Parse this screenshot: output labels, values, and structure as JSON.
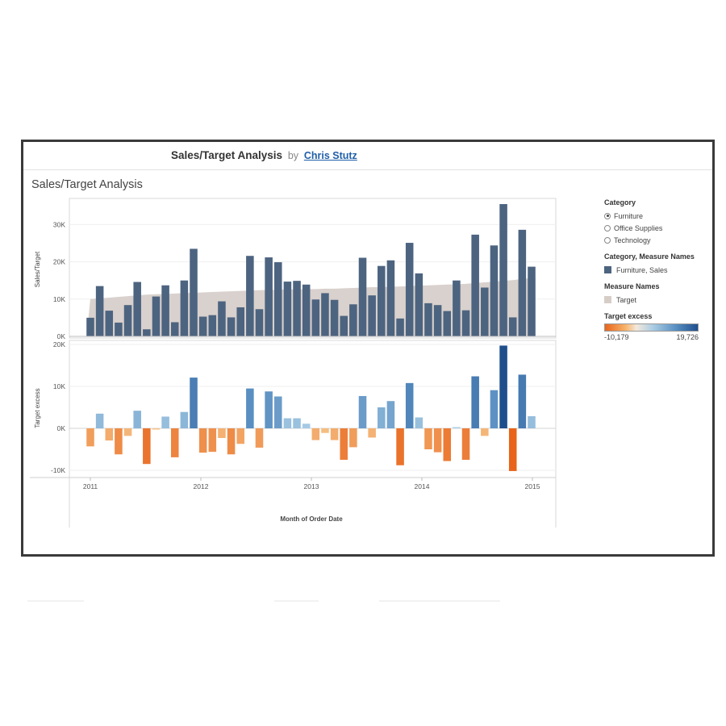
{
  "dashboard": {
    "title": "Sales/Target Analysis",
    "by": "by",
    "author": "Chris Stutz"
  },
  "sheet_title": "Sales/Target Analysis",
  "legend": {
    "category_title": "Category",
    "category_options": [
      {
        "label": "Furniture",
        "selected": true
      },
      {
        "label": "Office Supplies",
        "selected": false
      },
      {
        "label": "Technology",
        "selected": false
      }
    ],
    "measure_title": "Category, Measure Names",
    "measure_item": "Furniture, Sales",
    "measure_color": "#4d6480",
    "names_title": "Measure Names",
    "names_item": "Target",
    "names_color": "#d7cdc7",
    "excess_title": "Target excess",
    "excess_min": "-10,179",
    "excess_max": "19,726",
    "colors": {
      "sales": "#4d6480",
      "target_band": "#d9d1cd",
      "neg_strong": "#e8641b",
      "pos_strong": "#1f4e8c"
    }
  },
  "chart_data": [
    {
      "type": "bar",
      "title": "",
      "xlabel": "Month of Order Date",
      "ylabel": "Sales/Target",
      "x_ticks": [
        "2011",
        "2012",
        "2013",
        "2014",
        "2015"
      ],
      "y_ticks": [
        "0K",
        "10K",
        "20K",
        "30K"
      ],
      "ylim": [
        0,
        38000
      ],
      "series": [
        {
          "name": "Furniture, Sales",
          "values": [
            5000,
            13500,
            6900,
            3700,
            8400,
            14600,
            1900,
            10700,
            13700,
            3800,
            15000,
            23500,
            5300,
            5700,
            9400,
            5100,
            7800,
            21600,
            7300,
            21200,
            19900,
            14700,
            14900,
            13900,
            9900,
            11600,
            9800,
            5500,
            8600,
            21100,
            11000,
            18900,
            20400,
            4800,
            25100,
            16900,
            8900,
            8400,
            6800,
            15000,
            7000,
            27300,
            13100,
            24400,
            35500,
            5100,
            28600,
            18700
          ]
        },
        {
          "name": "Target",
          "values": [
            10000,
            10200,
            10400,
            10600,
            10800,
            11000,
            11200,
            11300,
            11400,
            11500,
            11600,
            11700,
            11800,
            11900,
            12000,
            12100,
            12200,
            12300,
            12400,
            12500,
            12500,
            12600,
            12600,
            12700,
            12700,
            12800,
            12800,
            12900,
            13000,
            13100,
            13200,
            13200,
            13300,
            13400,
            13500,
            13600,
            13700,
            13800,
            13900,
            14000,
            14100,
            14300,
            14500,
            14700,
            14900,
            15100,
            15400,
            15700
          ]
        }
      ]
    },
    {
      "type": "bar",
      "title": "",
      "ylabel": "Target excess",
      "y_ticks": [
        "20K",
        "10K",
        "0K",
        "-10K"
      ],
      "ylim": [
        -11000,
        20000
      ],
      "series": [
        {
          "name": "Target excess",
          "values": [
            -4300,
            3500,
            -2900,
            -6200,
            -1800,
            4200,
            -8500,
            -300,
            2800,
            -6900,
            3900,
            12100,
            -5800,
            -5600,
            -2300,
            -6200,
            -3700,
            9500,
            -4600,
            8800,
            7600,
            2400,
            2400,
            1100,
            -2800,
            -1100,
            -2800,
            -7500,
            -4500,
            7700,
            -2200,
            5000,
            6500,
            -8800,
            10800,
            2600,
            -5000,
            -5700,
            -7800,
            300,
            -7500,
            12400,
            -1800,
            9100,
            19726,
            -10179,
            12800,
            2900
          ]
        }
      ]
    }
  ]
}
